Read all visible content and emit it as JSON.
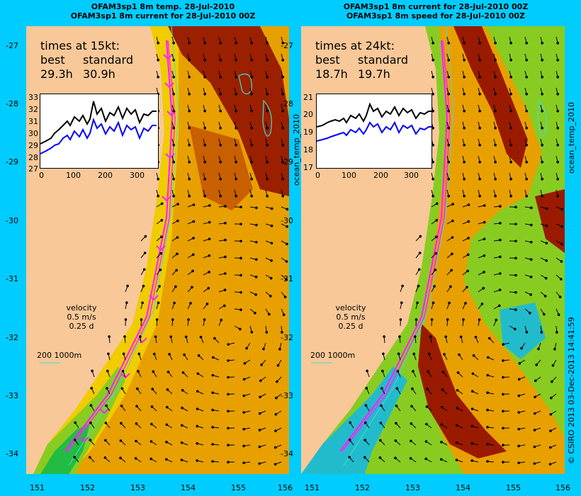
{
  "titles": {
    "left_line1": "OFAM3sp1 8m temp. 28-Jul-2010",
    "left_line2": "OFAM3sp1 8m current for 28-Jul-2010 00Z",
    "right_line1": "OFAM3sp1 8m current for 28-Jul-2010 00Z",
    "right_line2": "OFAM3sp1 8m speed for 28-Jul-2010 00Z"
  },
  "y_ticks": [
    "-27",
    "-28",
    "-29",
    "-30",
    "-31",
    "-32",
    "-33",
    "-34"
  ],
  "x_ticks": [
    "151",
    "152",
    "153",
    "154",
    "155",
    "156"
  ],
  "left_panel": {
    "times_header": "times at 15kt:",
    "col1": "best",
    "col2": "standard",
    "val1": "29.3h",
    "val2": "30.9h",
    "inset_y_ticks": [
      "33",
      "32",
      "31",
      "30",
      "29",
      "28",
      "27"
    ],
    "inset_x_ticks": [
      "0",
      "100",
      "200",
      "300"
    ],
    "side_label": "ocean_temp_2010"
  },
  "right_panel": {
    "times_header": "times at 24kt:",
    "col1": "best",
    "col2": "standard",
    "val1": "18.7h",
    "val2": "19.7h",
    "inset_y_ticks": [
      "21",
      "20",
      "19",
      "18",
      "17"
    ],
    "inset_x_ticks": [
      "0",
      "100",
      "200",
      "300"
    ],
    "side_label": "ocean_temp_2010"
  },
  "velocity_legend": {
    "line1": "velocity",
    "line2": "0.5 m/s",
    "line3": "0.25 d"
  },
  "scale_legend": {
    "label": "200  1000m"
  },
  "credit": "© CSIRO 2013   03-Dec-2013 14:41:59",
  "colors": {
    "land": "#f8c898",
    "warm": "#e88a00",
    "hot": "#9a1a00",
    "mid": "#f0c800",
    "cool": "#88cc22",
    "cold": "#22bb44",
    "route": "#ff22ff",
    "contour": "#44ddcc"
  }
}
